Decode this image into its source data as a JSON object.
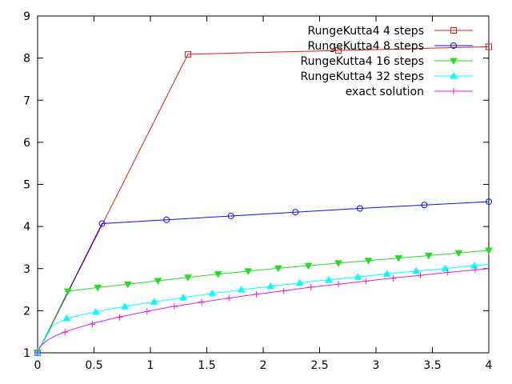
{
  "chart_data": {
    "type": "line",
    "title": "",
    "xlabel": "",
    "ylabel": "",
    "xlim": [
      0,
      4
    ],
    "ylim": [
      1,
      9
    ],
    "xticks": [
      0,
      0.5,
      1,
      1.5,
      2,
      2.5,
      3,
      3.5,
      4
    ],
    "xtick_labels": [
      "0",
      "0.5",
      "1",
      "1.5",
      "2",
      "2.5",
      "3",
      "3.5",
      "4"
    ],
    "yticks": [
      1,
      2,
      3,
      4,
      5,
      6,
      7,
      8,
      9
    ],
    "ytick_labels": [
      "1",
      "2",
      "3",
      "4",
      "5",
      "6",
      "7",
      "8",
      "9"
    ],
    "grid": false,
    "legend_position": "top-right",
    "series": [
      {
        "name": "RungeKutta4 4 steps",
        "color": "#e41a1c",
        "marker": "square",
        "x": [
          0,
          1.333,
          2.667,
          4.0
        ],
        "y": [
          1.0,
          8.09,
          8.18,
          8.27
        ],
        "marker_x": [
          0,
          1.333,
          2.667,
          4.0
        ],
        "marker_y": [
          1.0,
          8.09,
          8.18,
          8.27
        ]
      },
      {
        "name": "RungeKutta4 8 steps",
        "color": "#1010e0",
        "marker": "circle",
        "x": [
          0,
          0.571,
          1.143,
          1.714,
          2.286,
          2.857,
          3.429,
          4.0
        ],
        "y": [
          1.0,
          4.07,
          4.16,
          4.25,
          4.34,
          4.43,
          4.51,
          4.59
        ],
        "marker_x": [
          0,
          0.571,
          1.143,
          1.714,
          2.286,
          2.857,
          3.429,
          4.0
        ],
        "marker_y": [
          1.0,
          4.07,
          4.16,
          4.25,
          4.34,
          4.43,
          4.51,
          4.59
        ]
      },
      {
        "name": "RungeKutta4 16 steps",
        "color": "#22dd22",
        "marker": "triangle-down",
        "x": [
          0,
          0.267,
          0.533,
          0.8,
          1.067,
          1.333,
          1.6,
          1.867,
          2.133,
          2.4,
          2.667,
          2.933,
          3.2,
          3.467,
          3.733,
          4.0
        ],
        "y": [
          1.0,
          2.46,
          2.55,
          2.63,
          2.71,
          2.79,
          2.87,
          2.94,
          3.01,
          3.07,
          3.13,
          3.19,
          3.25,
          3.31,
          3.37,
          3.43
        ],
        "marker_x": [
          0,
          0.267,
          0.533,
          0.8,
          1.067,
          1.333,
          1.6,
          1.867,
          2.133,
          2.4,
          2.667,
          2.933,
          3.2,
          3.467,
          3.733,
          4.0
        ],
        "marker_y": [
          1.0,
          2.46,
          2.55,
          2.63,
          2.71,
          2.79,
          2.87,
          2.94,
          3.01,
          3.07,
          3.13,
          3.19,
          3.25,
          3.31,
          3.37,
          3.43
        ]
      },
      {
        "name": "RungeKutta4 32 steps",
        "color": "#00ffff",
        "marker": "triangle-up",
        "x": [
          0,
          0.129,
          0.258,
          0.387,
          0.516,
          0.645,
          0.774,
          0.903,
          1.032,
          1.161,
          1.29,
          1.419,
          1.548,
          1.677,
          1.806,
          1.935,
          2.065,
          2.194,
          2.323,
          2.452,
          2.581,
          2.71,
          2.839,
          2.968,
          3.097,
          3.226,
          3.355,
          3.484,
          3.613,
          3.742,
          3.871,
          4.0
        ],
        "y": [
          1.0,
          1.64,
          1.82,
          1.9,
          1.97,
          2.04,
          2.1,
          2.16,
          2.21,
          2.26,
          2.31,
          2.36,
          2.41,
          2.45,
          2.5,
          2.54,
          2.58,
          2.62,
          2.66,
          2.7,
          2.73,
          2.77,
          2.8,
          2.84,
          2.87,
          2.91,
          2.94,
          2.97,
          3.0,
          3.04,
          3.07,
          3.1
        ],
        "marker_x": [
          0,
          0.258,
          0.516,
          0.774,
          1.032,
          1.29,
          1.548,
          1.806,
          2.065,
          2.323,
          2.581,
          2.839,
          3.097,
          3.355,
          3.613,
          3.871
        ],
        "marker_y": [
          1.0,
          1.82,
          1.97,
          2.1,
          2.21,
          2.31,
          2.41,
          2.5,
          2.58,
          2.66,
          2.73,
          2.8,
          2.87,
          2.94,
          3.0,
          3.07
        ]
      },
      {
        "name": "exact solution",
        "color": "#e020e0",
        "marker": "plus",
        "x": [
          0,
          0.02,
          0.05,
          0.1,
          0.15,
          0.2,
          0.25,
          0.3,
          0.4,
          0.5,
          0.6,
          0.7,
          0.8,
          1.0,
          1.2,
          1.4,
          1.6,
          1.8,
          2.0,
          2.2,
          2.4,
          2.6,
          2.8,
          3.0,
          3.2,
          3.4,
          3.6,
          3.8,
          4.0
        ],
        "y": [
          1.0,
          1.14,
          1.22,
          1.32,
          1.39,
          1.45,
          1.5,
          1.55,
          1.63,
          1.71,
          1.77,
          1.84,
          1.89,
          2.0,
          2.1,
          2.18,
          2.26,
          2.34,
          2.41,
          2.48,
          2.55,
          2.61,
          2.67,
          2.73,
          2.79,
          2.84,
          2.9,
          2.95,
          3.0
        ],
        "marker_x": [
          0,
          0.242,
          0.485,
          0.727,
          0.97,
          1.212,
          1.455,
          1.697,
          1.939,
          2.182,
          2.424,
          2.667,
          2.909,
          3.152,
          3.394,
          3.636,
          3.879
        ],
        "marker_y": [
          1.0,
          1.49,
          1.68,
          1.84,
          1.98,
          2.1,
          2.21,
          2.3,
          2.39,
          2.47,
          2.56,
          2.63,
          2.7,
          2.77,
          2.84,
          2.91,
          2.97
        ]
      }
    ]
  }
}
